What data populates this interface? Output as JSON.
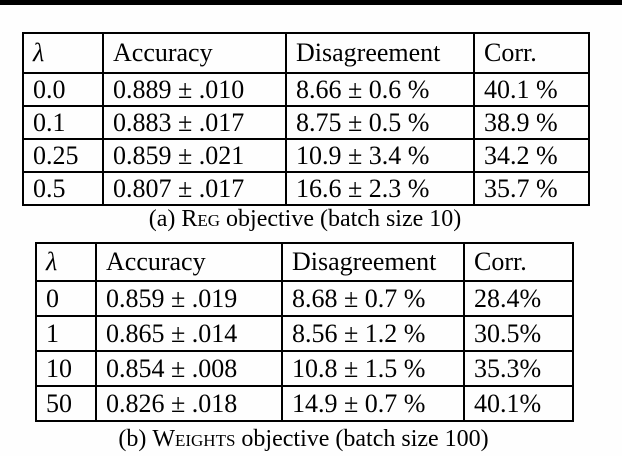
{
  "colors": {
    "background": "#fefefe",
    "top_rule": "#000000",
    "table_border": "#000000",
    "text": "#000000"
  },
  "tables": [
    {
      "id": "a",
      "caption": {
        "label": "(a)",
        "method": "Reg",
        "rest": "objective (batch size 10)"
      },
      "headers": [
        "λ",
        "Accuracy",
        "Disagreement",
        "Corr."
      ],
      "rows": [
        {
          "bold": false,
          "cells": [
            "0.0",
            "0.889 ± .010",
            "8.66 ± 0.6 %",
            "40.1 %"
          ]
        },
        {
          "bold": false,
          "cells": [
            "0.1",
            "0.883 ± .017",
            "8.75 ± 0.5 %",
            "38.9 %"
          ]
        },
        {
          "bold": false,
          "cells": [
            "0.25",
            "0.859 ± .021",
            "10.9 ± 3.4 %",
            "34.2 %"
          ]
        },
        {
          "bold": true,
          "cells": [
            "0.5",
            "0.807 ± .017",
            "16.6 ± 2.3 %",
            "35.7 %"
          ]
        }
      ]
    },
    {
      "id": "b",
      "caption": {
        "label": "(b)",
        "method": "Weights",
        "rest": "objective (batch size 100)"
      },
      "headers": [
        "λ",
        "Accuracy",
        "Disagreement",
        "Corr."
      ],
      "rows": [
        {
          "bold": false,
          "cells": [
            "0",
            "0.859 ± .019",
            "8.68 ± 0.7 %",
            "28.4%"
          ]
        },
        {
          "bold": false,
          "cells": [
            "1",
            "0.865 ± .014",
            "8.56 ± 1.2 %",
            "30.5%"
          ]
        },
        {
          "bold": false,
          "cells": [
            "10",
            "0.854 ± .008",
            "10.8 ± 1.5 %",
            "35.3%"
          ]
        },
        {
          "bold": true,
          "cells": [
            "50",
            "0.826 ± .018",
            "14.9 ± 0.7 %",
            "40.1%"
          ]
        }
      ]
    }
  ]
}
